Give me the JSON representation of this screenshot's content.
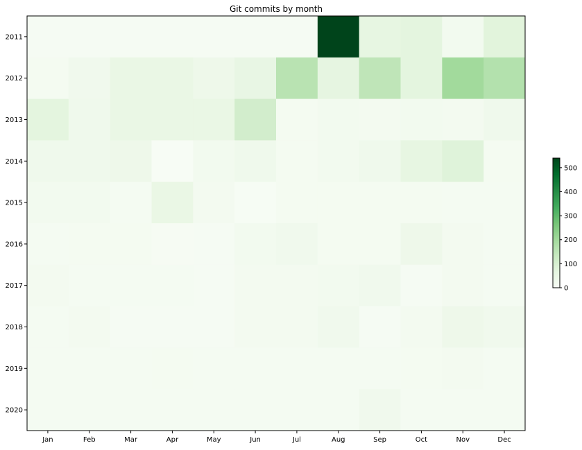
{
  "chart_data": {
    "type": "heatmap",
    "title": "Git commits by month",
    "x": [
      "Jan",
      "Feb",
      "Mar",
      "Apr",
      "May",
      "Jun",
      "Jul",
      "Aug",
      "Sep",
      "Oct",
      "Nov",
      "Dec"
    ],
    "y": [
      "2011",
      "2012",
      "2013",
      "2014",
      "2015",
      "2016",
      "2017",
      "2018",
      "2019",
      "2020"
    ],
    "values": [
      [
        8,
        8,
        8,
        8,
        8,
        8,
        8,
        540,
        60,
        70,
        20,
        75
      ],
      [
        12,
        25,
        50,
        50,
        35,
        55,
        160,
        65,
        150,
        70,
        200,
        170
      ],
      [
        70,
        30,
        50,
        50,
        50,
        110,
        12,
        18,
        15,
        20,
        15,
        30
      ],
      [
        30,
        30,
        35,
        0,
        20,
        30,
        12,
        18,
        30,
        60,
        80,
        12
      ],
      [
        20,
        20,
        10,
        50,
        15,
        4,
        12,
        12,
        12,
        12,
        10,
        10
      ],
      [
        10,
        12,
        12,
        5,
        8,
        20,
        25,
        12,
        12,
        35,
        15,
        10
      ],
      [
        15,
        10,
        10,
        10,
        8,
        15,
        15,
        20,
        25,
        8,
        15,
        10
      ],
      [
        10,
        15,
        8,
        8,
        8,
        15,
        15,
        25,
        8,
        15,
        35,
        25
      ],
      [
        10,
        10,
        10,
        12,
        10,
        10,
        10,
        10,
        10,
        12,
        15,
        10
      ],
      [
        10,
        10,
        10,
        10,
        10,
        10,
        10,
        10,
        25,
        10,
        10,
        10
      ]
    ],
    "colorbar": {
      "range": [
        0,
        540
      ],
      "ticks": [
        0,
        100,
        200,
        300,
        400,
        500
      ],
      "colormap": "Greens",
      "position": "right"
    },
    "grid": false
  }
}
